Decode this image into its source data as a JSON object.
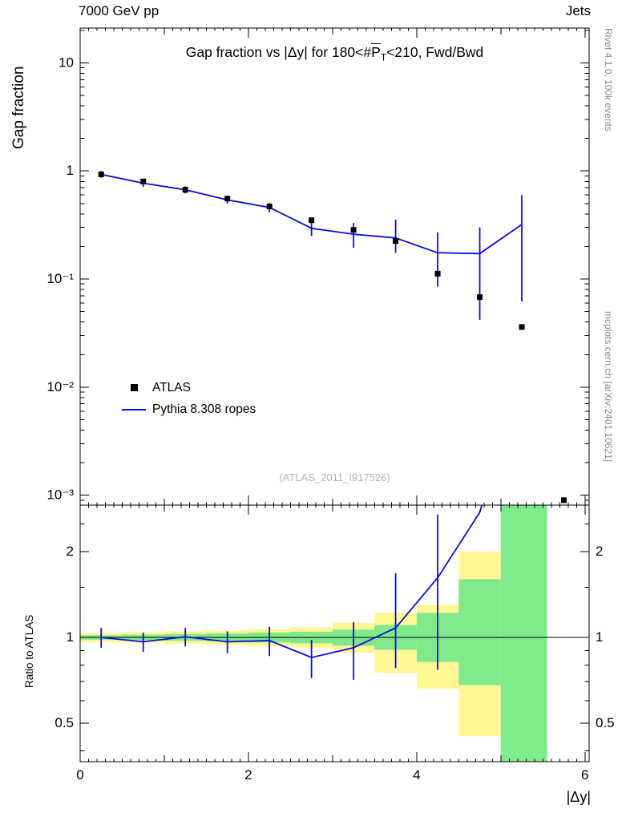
{
  "header": {
    "left": "7000 GeV pp",
    "right": "Jets"
  },
  "side_captions": {
    "top": "Rivet 4.1.0,  100k events",
    "bottom": "mcplots.cern.ch [arXiv:2401.10621]"
  },
  "plot_title": {
    "pre": "Gap fraction vs |Δy| for 180<#",
    "pbar": "P",
    "psub": "T",
    "post": "<210, Fwd/Bwd"
  },
  "axis_labels": {
    "main_y": "Gap fraction",
    "ratio_y": "Ratio to ATLAS",
    "x": "|Δy|"
  },
  "legend": {
    "items": [
      {
        "label": "ATLAS",
        "marker": "square",
        "color": "#000000"
      },
      {
        "label": "Pythia 8.308 ropes",
        "marker": "line",
        "color": "#0b0bdf"
      }
    ]
  },
  "watermark": "(ATLAS_2011_I917526)",
  "chart_data": {
    "type": "line",
    "title": "Gap fraction vs |Δy| for 180<#PT<210, Fwd/Bwd",
    "xlabel": "|Δy|",
    "ylabel_main": "Gap fraction",
    "ylabel_ratio": "Ratio to ATLAS",
    "x_range": [
      0,
      6.05
    ],
    "main_y_scale": "log",
    "main_y_range": [
      0.00081,
      21
    ],
    "ratio_y_scale": "log",
    "ratio_y_range": [
      0.366,
      2.916
    ],
    "x_ticks": {
      "major": [
        0,
        2,
        4,
        6
      ],
      "labels": [
        "0",
        "2",
        "4",
        "6"
      ],
      "medium": [
        1,
        3,
        5
      ],
      "minor_step": 0.1
    },
    "main_y_ticks": [
      {
        "v": 10,
        "label": "10"
      },
      {
        "v": 1,
        "label": "1"
      },
      {
        "v": 0.1,
        "label": "10⁻¹"
      },
      {
        "v": 0.01,
        "label": "10⁻²"
      },
      {
        "v": 0.001,
        "label": "10⁻³"
      }
    ],
    "ratio_y_ticks": [
      {
        "v": 2,
        "label": "2"
      },
      {
        "v": 1,
        "label": "1"
      },
      {
        "v": 0.5,
        "label": "0.5"
      }
    ],
    "ratio_y_minor": [
      0.4,
      0.6,
      0.7,
      0.8,
      0.9,
      1.5,
      2.5
    ],
    "colors": {
      "pythia": "#0b0bdf",
      "data": "#000000",
      "band_outer": "#fff793",
      "band_inner": "#7fe98b",
      "frame": "#000000"
    },
    "series": [
      {
        "name": "ATLAS",
        "type": "scatter",
        "marker": "square",
        "color": "#000000",
        "points": [
          {
            "x": 0.25,
            "y": 0.93
          },
          {
            "x": 0.75,
            "y": 0.8
          },
          {
            "x": 1.25,
            "y": 0.67
          },
          {
            "x": 1.75,
            "y": 0.555
          },
          {
            "x": 2.25,
            "y": 0.47
          },
          {
            "x": 2.75,
            "y": 0.35
          },
          {
            "x": 3.25,
            "y": 0.285
          },
          {
            "x": 3.75,
            "y": 0.225
          },
          {
            "x": 4.25,
            "y": 0.112
          },
          {
            "x": 4.75,
            "y": 0.068
          },
          {
            "x": 5.25,
            "y": 0.036
          },
          {
            "x": 5.75,
            "y": 0.0009
          }
        ]
      },
      {
        "name": "Pythia 8.308 ropes",
        "type": "line",
        "color": "#0b0bdf",
        "points": [
          {
            "x": 0.25,
            "y": 0.93,
            "lo": 0.865,
            "hi": 1.0
          },
          {
            "x": 0.75,
            "y": 0.77,
            "lo": 0.715,
            "hi": 0.83
          },
          {
            "x": 1.25,
            "y": 0.67,
            "lo": 0.62,
            "hi": 0.72
          },
          {
            "x": 1.75,
            "y": 0.54,
            "lo": 0.5,
            "hi": 0.59
          },
          {
            "x": 2.25,
            "y": 0.46,
            "lo": 0.415,
            "hi": 0.505
          },
          {
            "x": 2.75,
            "y": 0.295,
            "lo": 0.25,
            "hi": 0.345
          },
          {
            "x": 3.25,
            "y": 0.26,
            "lo": 0.195,
            "hi": 0.33
          },
          {
            "x": 3.75,
            "y": 0.24,
            "lo": 0.175,
            "hi": 0.355
          },
          {
            "x": 4.25,
            "y": 0.175,
            "lo": 0.085,
            "hi": 0.27
          },
          {
            "x": 4.75,
            "y": 0.172,
            "lo": 0.042,
            "hi": 0.3
          },
          {
            "x": 5.25,
            "y": 0.32,
            "lo": 0.062,
            "hi": 0.6
          }
        ]
      }
    ],
    "ratio": {
      "reference_y": 1,
      "line_points": [
        {
          "x": 0.25,
          "y": 1.0,
          "lo": 0.92,
          "hi": 1.08
        },
        {
          "x": 0.75,
          "y": 0.965,
          "lo": 0.89,
          "hi": 1.04
        },
        {
          "x": 1.25,
          "y": 1.005,
          "lo": 0.93,
          "hi": 1.08
        },
        {
          "x": 1.75,
          "y": 0.965,
          "lo": 0.88,
          "hi": 1.05
        },
        {
          "x": 2.25,
          "y": 0.975,
          "lo": 0.86,
          "hi": 1.09
        },
        {
          "x": 2.75,
          "y": 0.85,
          "lo": 0.72,
          "hi": 0.98
        },
        {
          "x": 3.25,
          "y": 0.92,
          "lo": 0.71,
          "hi": 1.13
        },
        {
          "x": 3.75,
          "y": 1.08,
          "lo": 0.78,
          "hi": 1.68
        },
        {
          "x": 4.25,
          "y": 1.62,
          "lo": 0.77,
          "hi": 2.7
        },
        {
          "x": 4.75,
          "y": 2.75,
          "lo": null,
          "hi": null
        },
        {
          "x": 5.25,
          "y": 8.9,
          "lo": null,
          "hi": null
        }
      ],
      "bands": [
        {
          "x0": 0.0,
          "x1": 0.5,
          "outer": [
            0.962,
            1.038
          ],
          "inner": [
            0.982,
            1.018
          ]
        },
        {
          "x0": 0.5,
          "x1": 1.0,
          "outer": [
            0.957,
            1.043
          ],
          "inner": [
            0.978,
            1.022
          ]
        },
        {
          "x0": 1.0,
          "x1": 1.5,
          "outer": [
            0.95,
            1.05
          ],
          "inner": [
            0.973,
            1.027
          ]
        },
        {
          "x0": 1.5,
          "x1": 2.0,
          "outer": [
            0.942,
            1.058
          ],
          "inner": [
            0.968,
            1.032
          ]
        },
        {
          "x0": 2.0,
          "x1": 2.5,
          "outer": [
            0.93,
            1.07
          ],
          "inner": [
            0.96,
            1.04
          ]
        },
        {
          "x0": 2.5,
          "x1": 3.0,
          "outer": [
            0.92,
            1.085
          ],
          "inner": [
            0.953,
            1.047
          ]
        },
        {
          "x0": 3.0,
          "x1": 3.5,
          "outer": [
            0.885,
            1.125
          ],
          "inner": [
            0.935,
            1.065
          ]
        },
        {
          "x0": 3.5,
          "x1": 4.0,
          "outer": [
            0.75,
            1.22
          ],
          "inner": [
            0.905,
            1.105
          ]
        },
        {
          "x0": 4.0,
          "x1": 4.5,
          "outer": [
            0.66,
            1.3
          ],
          "inner": [
            0.82,
            1.22
          ]
        },
        {
          "x0": 4.5,
          "x1": 5.0,
          "outer": [
            0.45,
            2.0
          ],
          "inner": [
            0.68,
            1.6
          ]
        },
        {
          "x0": 5.0,
          "x1": 5.55,
          "outer": [
            0.32,
            2.45
          ],
          "inner": [
            0.366,
            2.916
          ]
        }
      ]
    }
  }
}
